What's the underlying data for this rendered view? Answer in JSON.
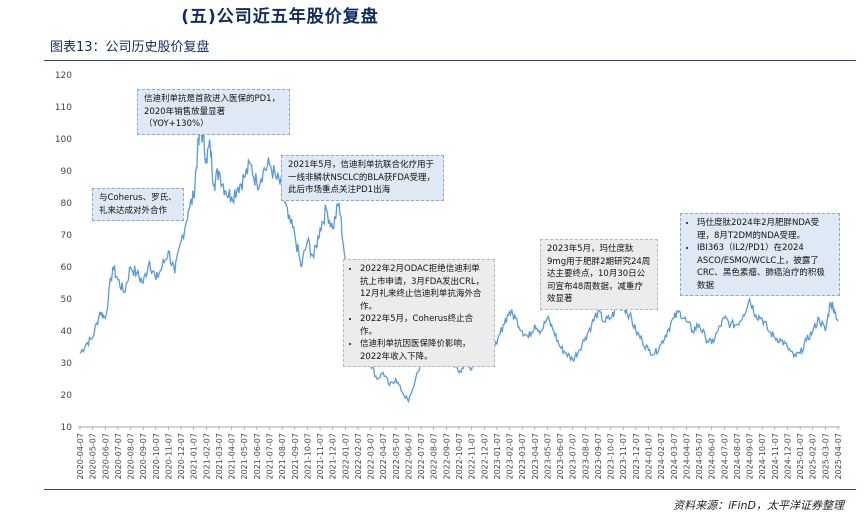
{
  "section_title": "(五)公司近五年股价复盘",
  "figure_title": "图表13：公司历史股价复盘",
  "source": "资料来源：iFinD，太平洋证券整理",
  "annotations": {
    "a1": "与Coherus、罗氏、礼来达成对外合作",
    "a2": "信迪利单抗是首款进入医保的PD1，2020年销售放量显著（YOY+130%）",
    "a3": "2021年5月，信迪利单抗联合化疗用于一线非鳞状NSCLC的BLA获FDA受理，此后市场重点关注PD1出海",
    "a4": [
      "2022年2月ODAC拒绝信迪利单抗上市申请，3月FDA发出CRL，12月礼来终止信迪利单抗海外合作。",
      "2022年5月，Coherus终止合作。",
      "信迪利单抗因医保降价影响，2022年收入下降。"
    ],
    "a5": "2023年5月，玛仕度肽9mg用于肥胖2期研究24周达主要终点，10月30日公司宣布48周数据，减重疗效显著",
    "a6": [
      "玛仕度肽2024年2月肥胖NDA受理，8月T2DM的NDA受理。",
      "IBI363（IL2/PD1）在2024 ASCO/ESMO/WCLC上，披露了CRC、黑色素瘤、肺癌治疗的积极数据"
    ]
  },
  "chart_data": {
    "type": "line",
    "title": "",
    "xlabel": "",
    "ylabel": "",
    "ylim": [
      10,
      120
    ],
    "yticks": [
      10,
      20,
      30,
      40,
      50,
      60,
      70,
      80,
      90,
      100,
      110,
      120
    ],
    "grid": false,
    "line_color": "#5b9bd5",
    "x_tick_labels": [
      "2020-04-07",
      "2020-05-07",
      "2020-06-07",
      "2020-07-07",
      "2020-08-07",
      "2020-09-07",
      "2020-10-07",
      "2020-11-07",
      "2020-12-07",
      "2021-01-07",
      "2021-02-07",
      "2021-03-07",
      "2021-04-07",
      "2021-05-07",
      "2021-06-07",
      "2021-07-07",
      "2021-08-07",
      "2021-09-07",
      "2021-10-07",
      "2021-11-07",
      "2021-12-07",
      "2022-01-07",
      "2022-02-07",
      "2022-03-07",
      "2022-04-07",
      "2022-05-07",
      "2022-06-07",
      "2022-07-07",
      "2022-08-07",
      "2022-09-07",
      "2022-10-07",
      "2022-11-07",
      "2022-12-07",
      "2023-01-07",
      "2023-02-07",
      "2023-03-07",
      "2023-04-07",
      "2023-05-07",
      "2023-06-07",
      "2023-07-07",
      "2023-08-07",
      "2023-09-07",
      "2023-10-07",
      "2023-11-07",
      "2023-12-07",
      "2024-01-07",
      "2024-02-07",
      "2024-03-07",
      "2024-04-07",
      "2024-05-07",
      "2024-06-07",
      "2024-07-07",
      "2024-08-07",
      "2024-09-07",
      "2024-10-07",
      "2024-11-07",
      "2024-12-07",
      "2025-01-07",
      "2025-02-07",
      "2025-03-07",
      "2025-04-07"
    ],
    "series": [
      {
        "values": [
          [
            0,
            33
          ],
          [
            0.5,
            36
          ],
          [
            1,
            38
          ],
          [
            1.6,
            46
          ],
          [
            2,
            44
          ],
          [
            2.6,
            60
          ],
          [
            3,
            56
          ],
          [
            3.5,
            52
          ],
          [
            4,
            60
          ],
          [
            4.5,
            58
          ],
          [
            5,
            55
          ],
          [
            5.5,
            62
          ],
          [
            6,
            56
          ],
          [
            6.5,
            60
          ],
          [
            7,
            65
          ],
          [
            7.5,
            58
          ],
          [
            8,
            68
          ],
          [
            8.6,
            78
          ],
          [
            9,
            82
          ],
          [
            9.3,
            96
          ],
          [
            9.6,
            103
          ],
          [
            10,
            94
          ],
          [
            10.3,
            98
          ],
          [
            10.6,
            86
          ],
          [
            11,
            90
          ],
          [
            11.5,
            84
          ],
          [
            12,
            82
          ],
          [
            12.5,
            85
          ],
          [
            13,
            88
          ],
          [
            13.5,
            92
          ],
          [
            14,
            86
          ],
          [
            14.5,
            90
          ],
          [
            15,
            92
          ],
          [
            15.5,
            88
          ],
          [
            16,
            85
          ],
          [
            16.5,
            75
          ],
          [
            17,
            70
          ],
          [
            17.5,
            60
          ],
          [
            18,
            68
          ],
          [
            18.5,
            63
          ],
          [
            19,
            72
          ],
          [
            19.5,
            78
          ],
          [
            20,
            72
          ],
          [
            20.5,
            80
          ],
          [
            21,
            62
          ],
          [
            21.5,
            52
          ],
          [
            22,
            40
          ],
          [
            22.5,
            36
          ],
          [
            23,
            30
          ],
          [
            23.5,
            25
          ],
          [
            24,
            27
          ],
          [
            24.5,
            23
          ],
          [
            25,
            25
          ],
          [
            25.5,
            21
          ],
          [
            26,
            18
          ],
          [
            26.5,
            24
          ],
          [
            27,
            30
          ],
          [
            27.5,
            38
          ],
          [
            28,
            36
          ],
          [
            28.5,
            32
          ],
          [
            29,
            35
          ],
          [
            29.5,
            30
          ],
          [
            30,
            27
          ],
          [
            30.5,
            30
          ],
          [
            31,
            28
          ],
          [
            31.5,
            35
          ],
          [
            32,
            38
          ],
          [
            32.5,
            32
          ],
          [
            33,
            36
          ],
          [
            33.5,
            42
          ],
          [
            34,
            46
          ],
          [
            34.5,
            44
          ],
          [
            35,
            40
          ],
          [
            35.5,
            38
          ],
          [
            36,
            42
          ],
          [
            36.5,
            40
          ],
          [
            37,
            44
          ],
          [
            37.5,
            40
          ],
          [
            38,
            35
          ],
          [
            38.5,
            33
          ],
          [
            39,
            31
          ],
          [
            39.5,
            34
          ],
          [
            40,
            38
          ],
          [
            40.5,
            42
          ],
          [
            41,
            46
          ],
          [
            41.5,
            43
          ],
          [
            42,
            44
          ],
          [
            42.5,
            47
          ],
          [
            43,
            48
          ],
          [
            43.5,
            45
          ],
          [
            44,
            40
          ],
          [
            44.5,
            37
          ],
          [
            45,
            34
          ],
          [
            45.5,
            33
          ],
          [
            46,
            36
          ],
          [
            46.5,
            40
          ],
          [
            47,
            44
          ],
          [
            47.5,
            46
          ],
          [
            48,
            43
          ],
          [
            48.5,
            40
          ],
          [
            49,
            42
          ],
          [
            49.5,
            38
          ],
          [
            50,
            36
          ],
          [
            50.5,
            40
          ],
          [
            51,
            44
          ],
          [
            51.5,
            42
          ],
          [
            52,
            42
          ],
          [
            52.5,
            45
          ],
          [
            53,
            50
          ],
          [
            53.5,
            45
          ],
          [
            54,
            44
          ],
          [
            54.5,
            40
          ],
          [
            55,
            38
          ],
          [
            55.5,
            37
          ],
          [
            56,
            35
          ],
          [
            56.5,
            32
          ],
          [
            57,
            33
          ],
          [
            57.5,
            37
          ],
          [
            58,
            40
          ],
          [
            58.5,
            44
          ],
          [
            59,
            40
          ],
          [
            59.4,
            49
          ],
          [
            59.7,
            47
          ],
          [
            60,
            43
          ]
        ]
      }
    ]
  }
}
